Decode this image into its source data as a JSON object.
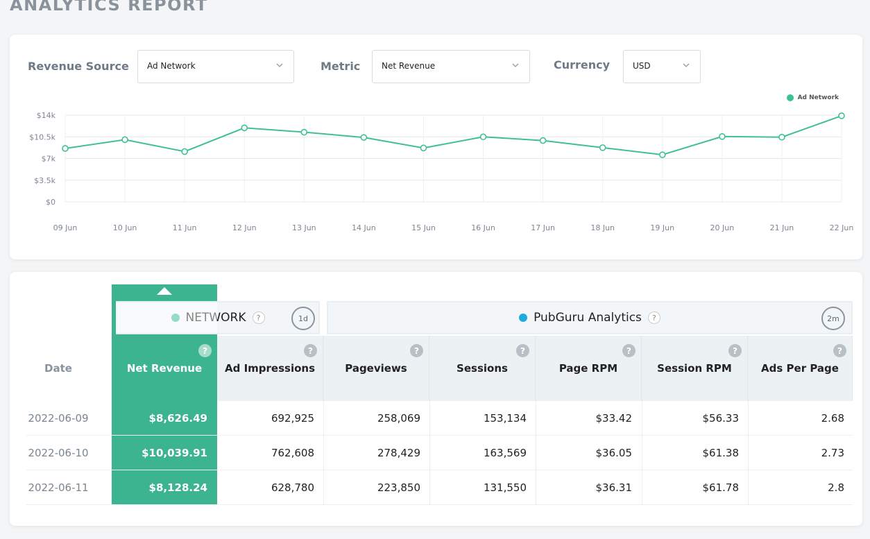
{
  "page": {
    "title": "ANALYTICS REPORT"
  },
  "filters": {
    "revenue_source": {
      "label": "Revenue Source",
      "value": "Ad Network"
    },
    "metric": {
      "label": "Metric",
      "value": "Net Revenue"
    },
    "currency": {
      "label": "Currency",
      "value": "USD"
    }
  },
  "chart_data": {
    "type": "line",
    "x": [
      "09 Jun",
      "10 Jun",
      "11 Jun",
      "12 Jun",
      "13 Jun",
      "14 Jun",
      "15 Jun",
      "16 Jun",
      "17 Jun",
      "18 Jun",
      "19 Jun",
      "20 Jun",
      "21 Jun",
      "22 Jun"
    ],
    "series": [
      {
        "name": "Ad Network",
        "values": [
          8626.49,
          10039.91,
          8128.24,
          11950,
          11250,
          10400,
          8700,
          10500,
          9900,
          8750,
          7600,
          10550,
          10450,
          13900
        ]
      }
    ],
    "yticks": [
      "$0",
      "$3.5k",
      "$7k",
      "$10.5k",
      "$14k"
    ],
    "ylim": [
      0,
      14000
    ],
    "color": "#3fbf99",
    "legend": "top-right",
    "grid": true
  },
  "table": {
    "groups": {
      "network": {
        "label": "NETWORK",
        "cycle": "1d",
        "dot_color": "#3fbf99"
      },
      "pubguru": {
        "label": "PubGuru Analytics",
        "cycle": "2m",
        "dot_color": "#1fa9dd"
      }
    },
    "date_header": "Date",
    "columns": [
      "Net Revenue",
      "Ad Impressions",
      "Pageviews",
      "Sessions",
      "Page RPM",
      "Session RPM",
      "Ads Per Page"
    ],
    "rows": [
      {
        "date": "2022-06-09",
        "values": [
          "$8,626.49",
          "692,925",
          "258,069",
          "153,134",
          "$33.42",
          "$56.33",
          "2.68"
        ]
      },
      {
        "date": "2022-06-10",
        "values": [
          "$10,039.91",
          "762,608",
          "278,429",
          "163,569",
          "$36.05",
          "$61.38",
          "2.73"
        ]
      },
      {
        "date": "2022-06-11",
        "values": [
          "$8,128.24",
          "628,780",
          "223,850",
          "131,550",
          "$36.31",
          "$61.78",
          "2.8"
        ]
      }
    ]
  }
}
